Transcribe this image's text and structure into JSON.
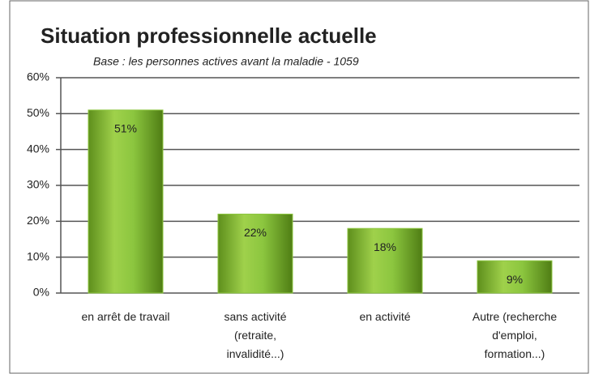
{
  "chart_data": {
    "type": "bar",
    "title": "Situation professionnelle actuelle",
    "subtitle": "Base : les personnes actives avant la maladie - 1059",
    "categories": [
      [
        "en arrêt de travail"
      ],
      [
        "sans activité",
        "(retraite,",
        "invalidité...)"
      ],
      [
        "en activité"
      ],
      [
        "Autre (recherche",
        "d'emploi,",
        "formation...)"
      ]
    ],
    "values": [
      51,
      22,
      18,
      9
    ],
    "value_labels": [
      "51%",
      "22%",
      "18%",
      "9%"
    ],
    "color": "#8cc63f",
    "ylim": [
      0,
      60
    ],
    "yticks": [
      {
        "value": 0,
        "label": "0%"
      },
      {
        "value": 10,
        "label": "10%"
      },
      {
        "value": 20,
        "label": "20%"
      },
      {
        "value": 30,
        "label": "30%"
      },
      {
        "value": 40,
        "label": "40%"
      },
      {
        "value": 50,
        "label": "50%"
      },
      {
        "value": 60,
        "label": "60%"
      }
    ],
    "grid": true
  }
}
